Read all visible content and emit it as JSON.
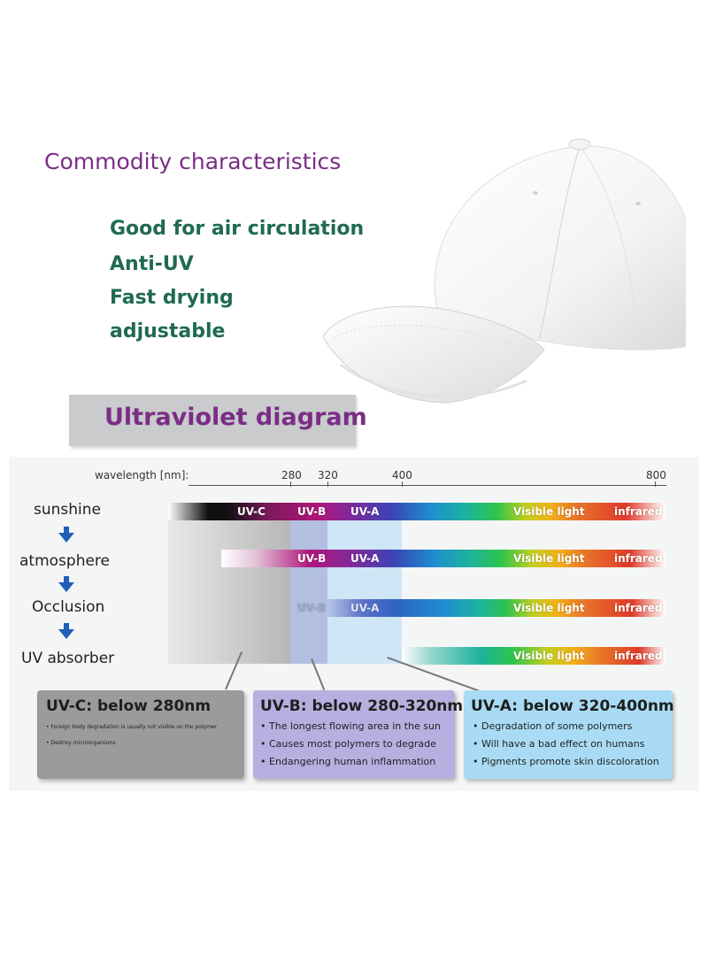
{
  "characteristics": {
    "heading": "Commodity characteristics",
    "items": [
      "Good for air circulation",
      "Anti-UV",
      "Fast drying",
      "adjustable"
    ]
  },
  "uv_diagram": {
    "banner": "Ultraviolet diagram",
    "wavelength_label": "wavelength [nm]:",
    "ticks": [
      "280",
      "320",
      "400",
      "800"
    ],
    "stages": [
      "sunshine",
      "atmosphere",
      "Occlusion",
      "UV absorber"
    ],
    "band_labels": {
      "uvc": "UV-C",
      "uvb": "UV-B",
      "uva": "UV-A",
      "visible": "Visible light",
      "infrared": "infrared"
    },
    "boxes": [
      {
        "title": "UV-C: below 280nm",
        "items": [
          "Foreign body degradation is usually not visible on the polymer",
          "Destroy microorganisms"
        ],
        "color": "#9b9b9b"
      },
      {
        "title": "UV-B: below 280-320nm",
        "items": [
          "The longest flowing area in the sun",
          "Causes most polymers to degrade",
          "Endangering human inflammation"
        ],
        "color": "#b9aee0"
      },
      {
        "title": "UV-A: below 320-400nm",
        "items": [
          "Degradation of some polymers",
          "Will have a bad effect on humans",
          "Pigments promote skin discoloration"
        ],
        "color": "#a9dcf4"
      }
    ],
    "colors": {
      "heading": "#7b2d86",
      "feature": "#1f6b4f",
      "arrow": "#1f5fb8"
    }
  }
}
